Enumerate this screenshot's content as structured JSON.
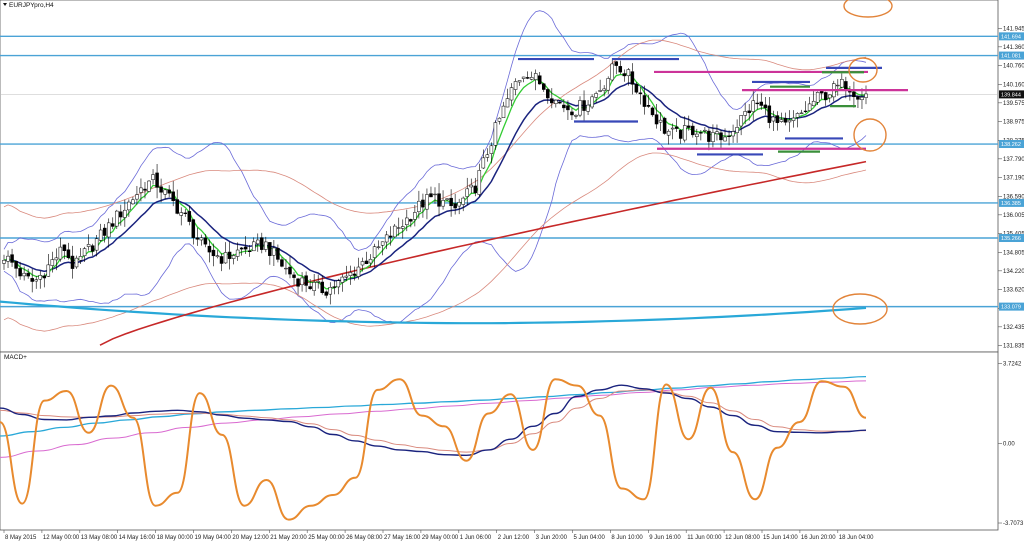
{
  "window": {
    "symbol_title": "EURJPYpro,H4",
    "indicator_title": "MACD+"
  },
  "colors": {
    "background": "#ffffff",
    "frame": "#555555",
    "bull_candle": "#ffffff",
    "bear_candle": "#000000",
    "support_resistance": "#4aa3d6",
    "bollinger": "#6a6ad8",
    "envelope": "#d98a7e",
    "ema_fast": "#33cc33",
    "ema_slow": "#1a237e",
    "ma_long": "#c62828",
    "ma_very_long": "#29a8d8",
    "stochastic": "#e88a2e",
    "marker_circle": "#e2843a",
    "marker_magenta": "#cc3399",
    "marker_blue": "#3848b8",
    "marker_green": "#3a8f3a",
    "macd_signal": "#d96ad0"
  },
  "chart_data": [
    {
      "type": "candlestick",
      "title": "EURJPYpro,H4",
      "x_tick_labels": [
        "8 May 2015",
        "12 May 00:00",
        "13 May 08:00",
        "14 May 16:00",
        "18 May 00:00",
        "19 May 04:00",
        "20 May 12:00",
        "21 May 20:00",
        "25 May 00:00",
        "26 May 08:00",
        "27 May 16:00",
        "29 May 00:00",
        "1 Jun 06:00",
        "2 Jun 12:00",
        "3 Jun 20:00",
        "5 Jun 04:00",
        "8 Jun 10:00",
        "9 Jun 16:00",
        "11 Jun 00:00",
        "12 Jun 08:00",
        "15 Jun 14:00",
        "16 Jun 20:00",
        "18 Jun 04:00"
      ],
      "y_tick_labels": [
        "141.945",
        "141.360",
        "140.760",
        "140.160",
        "139.575",
        "138.975",
        "138.375",
        "137.790",
        "137.190",
        "136.590",
        "136.005",
        "135.405",
        "134.805",
        "134.220",
        "133.620",
        "133.020",
        "132.435",
        "131.835"
      ],
      "ylim": [
        131.76,
        142.47
      ],
      "horizontal_levels": [
        "141.694",
        "141.081",
        "138.262",
        "136.385",
        "135.266",
        "133.079"
      ],
      "current_price": "139.844",
      "close_path": [
        134.7,
        134.4,
        134.0,
        133.85,
        134.2,
        134.6,
        134.95,
        134.3,
        134.75,
        135.1,
        135.45,
        135.85,
        136.2,
        136.6,
        136.95,
        137.1,
        136.7,
        136.35,
        135.95,
        135.4,
        134.9,
        134.75,
        134.6,
        134.8,
        134.9,
        134.95,
        135.1,
        134.7,
        134.3,
        134.0,
        133.85,
        133.7,
        133.6,
        133.75,
        133.95,
        134.25,
        134.55,
        134.8,
        135.15,
        135.5,
        135.8,
        136.15,
        136.45,
        136.55,
        136.35,
        136.2,
        136.55,
        136.9,
        137.8,
        138.7,
        139.5,
        140.2,
        140.6,
        140.35,
        140.05,
        139.65,
        139.45,
        139.35,
        139.55,
        139.85,
        140.25,
        140.8,
        140.55,
        140.1,
        139.6,
        139.1,
        138.7,
        138.55,
        138.65,
        138.75,
        138.55,
        138.45,
        138.5,
        138.85,
        139.25,
        139.6,
        139.3,
        138.9,
        138.8,
        139.05,
        139.35,
        139.7,
        139.85,
        140.05,
        140.2,
        139.9,
        139.84
      ]
    },
    {
      "type": "line",
      "title": "MACD+",
      "y_tick_labels": [
        "3.7242",
        "0.00",
        "-3.7073"
      ],
      "ylim": [
        -3.8,
        3.8
      ],
      "series": [
        {
          "values": [
            1.65,
            1.35,
            1.12,
            1.1,
            1.22,
            1.28,
            1.42,
            1.5,
            1.55,
            1.48,
            1.32,
            1.18,
            1.1,
            1.02,
            0.78,
            0.42,
            0.12,
            -0.12,
            -0.3,
            -0.38,
            -0.52,
            -0.55,
            -0.3,
            0.2,
            0.8,
            1.4,
            2.2,
            2.5,
            2.72,
            2.55,
            2.35,
            2.1,
            1.7,
            1.3,
            0.85,
            0.55,
            0.52,
            0.5,
            0.55,
            0.62
          ]
        },
        {
          "values": [
            1.55,
            1.42,
            1.3,
            1.24,
            1.22,
            1.24,
            1.3,
            1.36,
            1.4,
            1.41,
            1.36,
            1.28,
            1.2,
            1.1,
            0.92,
            0.65,
            0.38,
            0.15,
            -0.05,
            -0.2,
            -0.32,
            -0.4,
            -0.3,
            0.0,
            0.45,
            1.0,
            1.65,
            2.1,
            2.45,
            2.5,
            2.4,
            2.2,
            1.9,
            1.52,
            1.12,
            0.78,
            0.64,
            0.58,
            0.58,
            0.6
          ]
        },
        {
          "values": [
            1.0,
            -2.8,
            2.0,
            2.45,
            0.5,
            2.7,
            1.2,
            -2.9,
            -2.3,
            2.35,
            0.4,
            -2.9,
            -1.7,
            -3.55,
            -2.9,
            -2.4,
            -1.6,
            2.5,
            3.0,
            1.3,
            0.8,
            -0.8,
            1.4,
            2.3,
            -0.3,
            3.0,
            2.7,
            1.3,
            -2.1,
            -2.6,
            2.75,
            0.2,
            2.6,
            -0.4,
            -2.6,
            -0.2,
            1.0,
            2.9,
            2.65,
            1.2
          ]
        },
        {
          "values": [
            0.35,
            0.55,
            0.75,
            0.95,
            1.1,
            1.25,
            1.38,
            1.48,
            1.55,
            1.62,
            1.68,
            1.75,
            1.82,
            1.88,
            1.95,
            2.02,
            2.1,
            2.18,
            2.28,
            2.38,
            2.48,
            2.58,
            2.68,
            2.78,
            2.88,
            2.98,
            3.05,
            3.12
          ]
        },
        {
          "values": [
            -0.65,
            -0.35,
            -0.05,
            0.25,
            0.5,
            0.75,
            0.95,
            1.1,
            1.25,
            1.38,
            1.5,
            1.62,
            1.75,
            1.88,
            2.0,
            2.12,
            2.25,
            2.38,
            2.5,
            2.62,
            2.72,
            2.8,
            2.86,
            2.92
          ]
        }
      ]
    }
  ]
}
